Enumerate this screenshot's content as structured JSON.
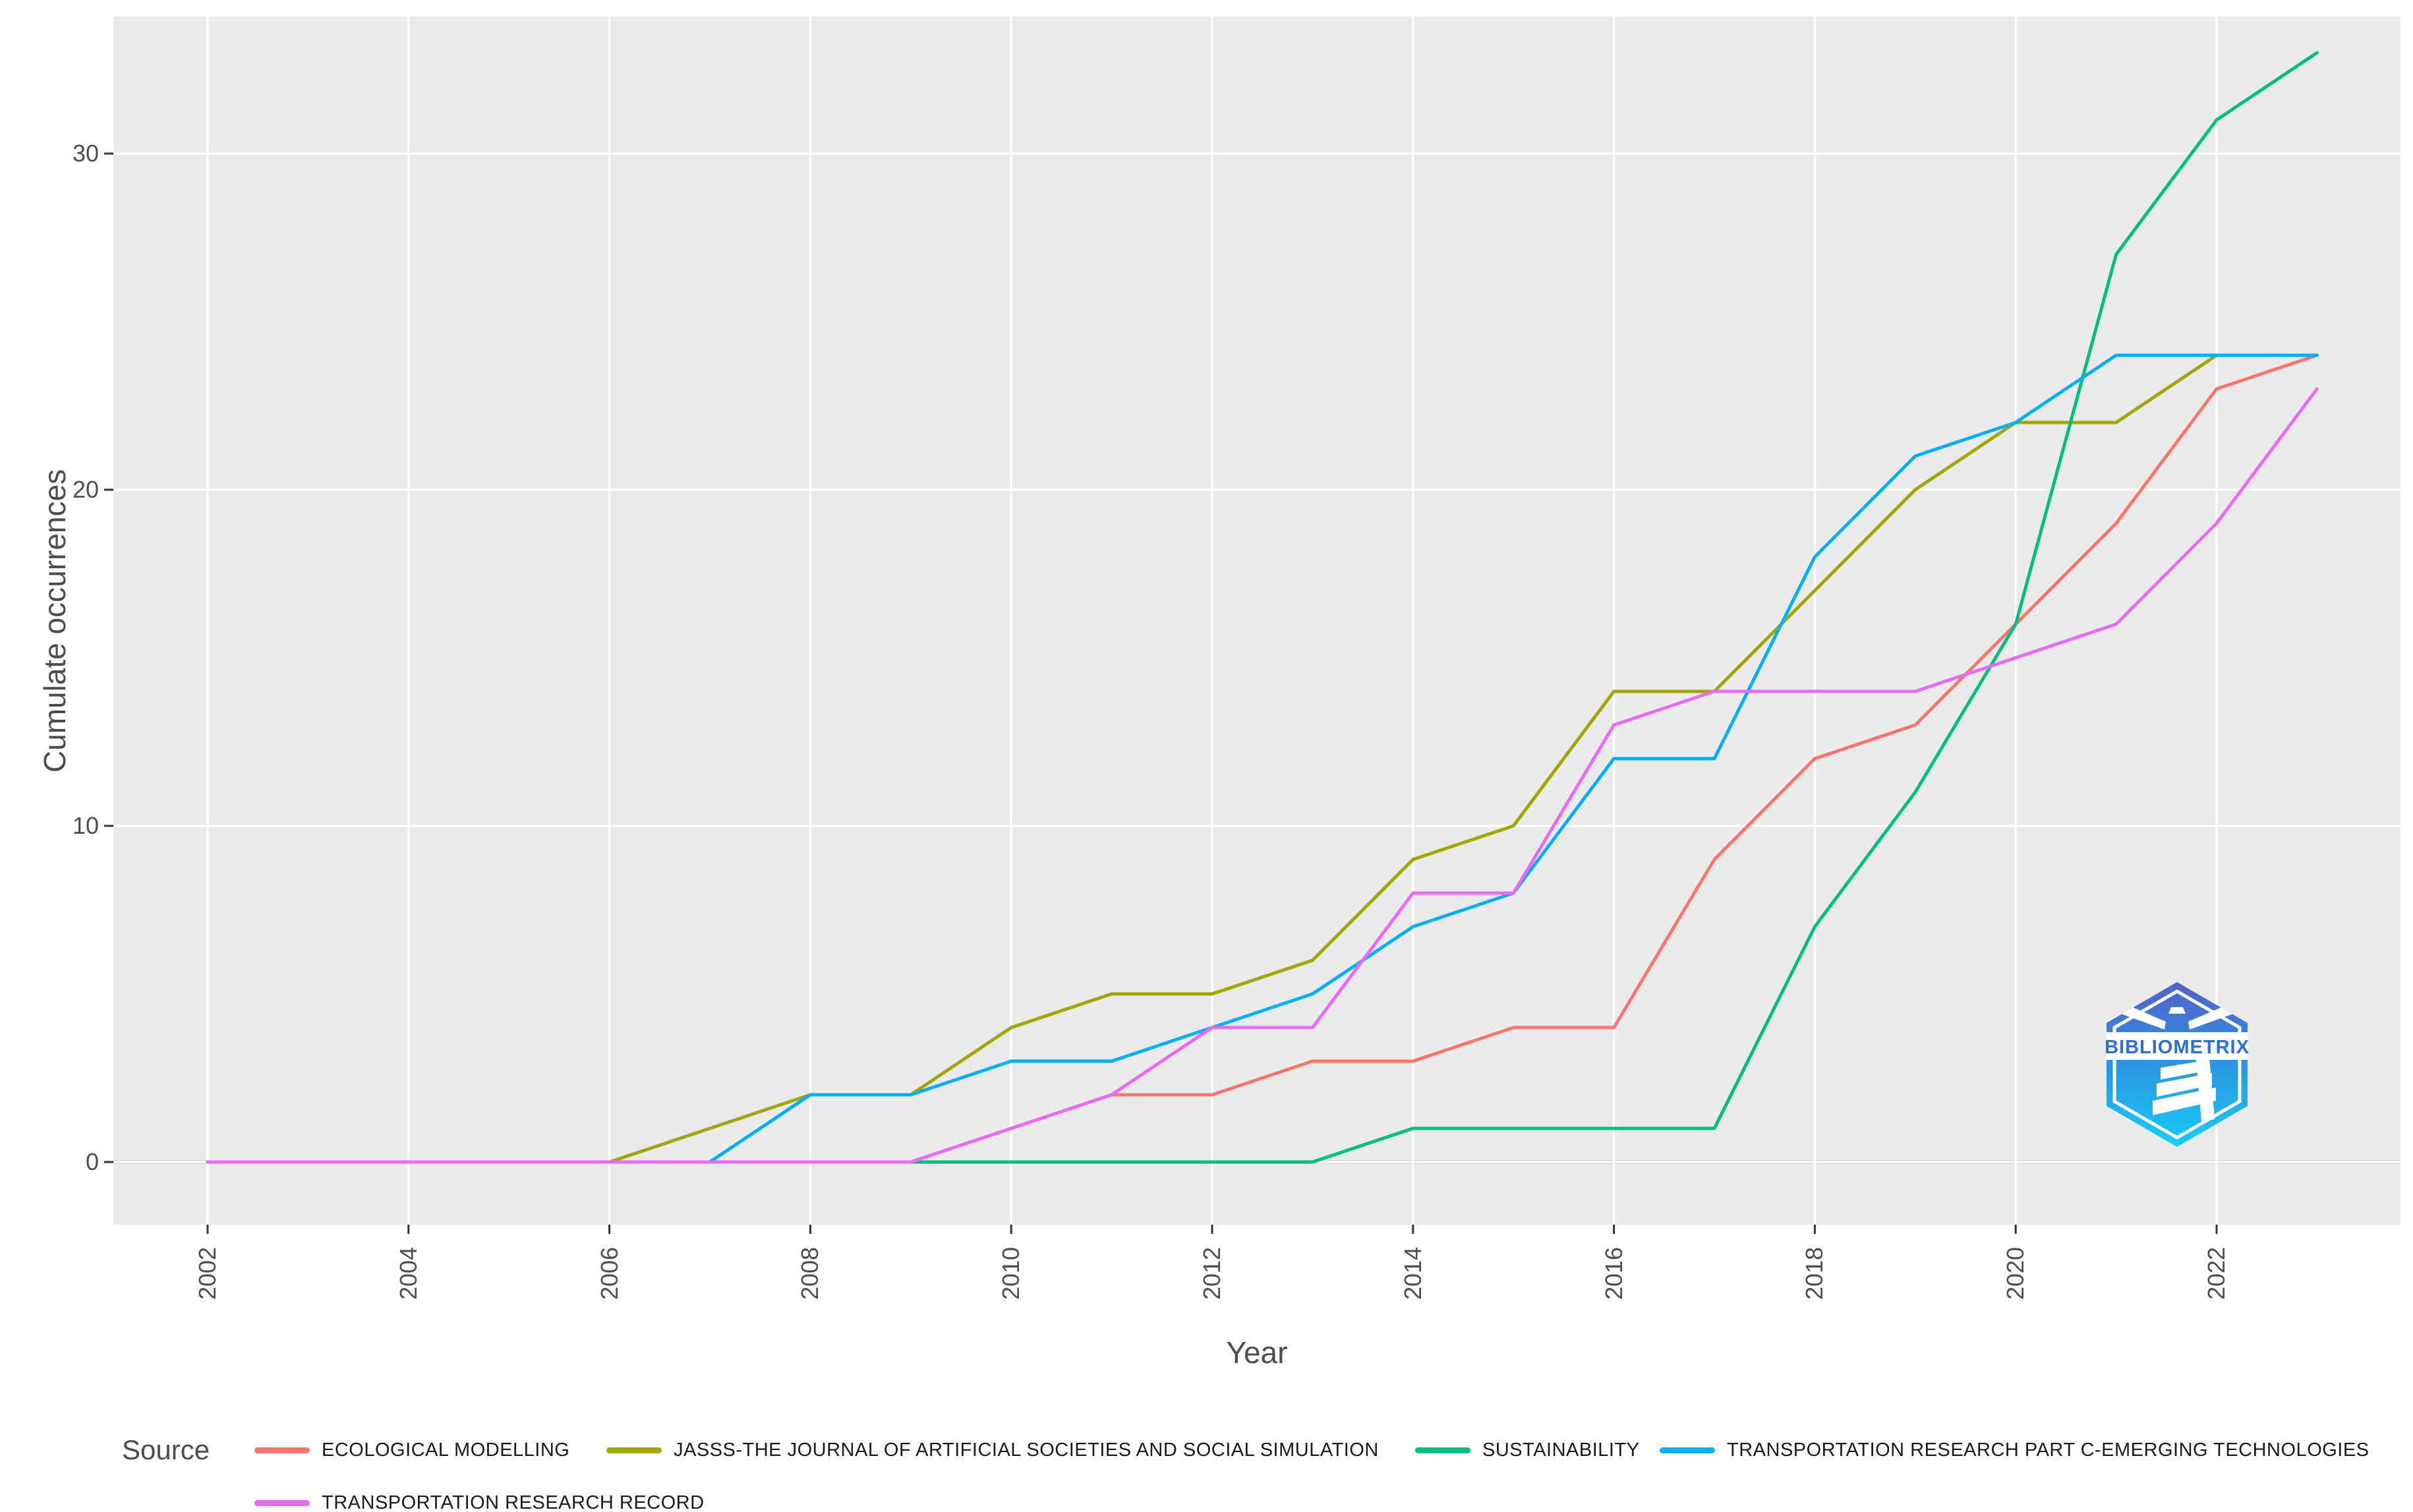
{
  "page": {
    "background": "#ffffff",
    "panel_bg": "#EBEBEB",
    "gridline_color": "#FFFFFF",
    "zero_line_color": "#C9C9C9",
    "tick_color": "#333333"
  },
  "axes": {
    "y_title": "Cumulate occurrences",
    "x_title": "Year",
    "y_ticks": [
      "0",
      "10",
      "20",
      "30"
    ],
    "x_ticks": [
      "2002",
      "2004",
      "2006",
      "2008",
      "2010",
      "2012",
      "2014",
      "2016",
      "2018",
      "2020",
      "2022"
    ]
  },
  "legend": {
    "title": "Source"
  },
  "logo": {
    "text": "BIBLIOMETRIX"
  },
  "chart_data": {
    "type": "line",
    "title": "",
    "xlabel": "Year",
    "ylabel": "Cumulate occurrences",
    "x": [
      2002,
      2003,
      2004,
      2005,
      2006,
      2007,
      2008,
      2009,
      2010,
      2011,
      2012,
      2013,
      2014,
      2015,
      2016,
      2017,
      2018,
      2019,
      2020,
      2021,
      2022,
      2023
    ],
    "ylim": [
      0,
      33
    ],
    "grid": "major white gridlines on gray panel, no minor",
    "legend_position": "bottom",
    "series": [
      {
        "name": "ECOLOGICAL MODELLING",
        "color": "#F8766D",
        "values": [
          0,
          0,
          0,
          0,
          0,
          0,
          0,
          0,
          1,
          2,
          2,
          3,
          3,
          4,
          4,
          9,
          12,
          13,
          16,
          19,
          23,
          24
        ]
      },
      {
        "name": "JASSS-THE JOURNAL OF ARTIFICIAL SOCIETIES AND SOCIAL SIMULATION",
        "color": "#A3A500",
        "values": [
          0,
          0,
          0,
          0,
          0,
          1,
          2,
          2,
          4,
          5,
          5,
          6,
          9,
          10,
          14,
          14,
          17,
          20,
          22,
          22,
          24,
          24
        ]
      },
      {
        "name": "SUSTAINABILITY",
        "color": "#00BF7D",
        "values": [
          0,
          0,
          0,
          0,
          0,
          0,
          0,
          0,
          0,
          0,
          0,
          0,
          1,
          1,
          1,
          1,
          7,
          11,
          16,
          27,
          31,
          33
        ]
      },
      {
        "name": "TRANSPORTATION RESEARCH PART C-EMERGING TECHNOLOGIES",
        "color": "#00B0F6",
        "values": [
          0,
          0,
          0,
          0,
          0,
          0,
          2,
          2,
          3,
          3,
          4,
          5,
          7,
          8,
          12,
          12,
          18,
          21,
          22,
          24,
          24,
          24
        ]
      },
      {
        "name": "TRANSPORTATION RESEARCH RECORD",
        "color": "#E76BF3",
        "values": [
          0,
          0,
          0,
          0,
          0,
          0,
          0,
          0,
          1,
          2,
          4,
          4,
          8,
          8,
          13,
          14,
          14,
          14,
          15,
          16,
          19,
          23
        ]
      }
    ]
  }
}
